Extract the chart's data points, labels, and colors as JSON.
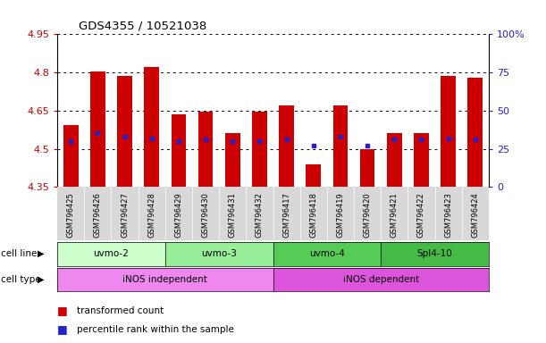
{
  "title": "GDS4355 / 10521038",
  "samples": [
    "GSM796425",
    "GSM796426",
    "GSM796427",
    "GSM796428",
    "GSM796429",
    "GSM796430",
    "GSM796431",
    "GSM796432",
    "GSM796417",
    "GSM796418",
    "GSM796419",
    "GSM796420",
    "GSM796421",
    "GSM796422",
    "GSM796423",
    "GSM796424"
  ],
  "bar_values": [
    4.595,
    4.805,
    4.785,
    4.82,
    4.635,
    4.645,
    4.56,
    4.645,
    4.67,
    4.44,
    4.67,
    4.5,
    4.56,
    4.56,
    4.785,
    4.78
  ],
  "blue_dot_pct": [
    30,
    35,
    33,
    32,
    30,
    31,
    30,
    30,
    31,
    27,
    33,
    27,
    31,
    31,
    32,
    31
  ],
  "ymin": 4.35,
  "ymax": 4.95,
  "yticks": [
    4.35,
    4.5,
    4.65,
    4.8,
    4.95
  ],
  "yticklabels": [
    "4.35",
    "4.5",
    "4.65",
    "4.8",
    "4.95"
  ],
  "right_ytick_pct": [
    0,
    25,
    50,
    75,
    100
  ],
  "right_yticklabels": [
    "0",
    "25",
    "50",
    "75",
    "100%"
  ],
  "bar_color": "#cc0000",
  "blue_color": "#2222cc",
  "left_tick_color": "#cc0000",
  "right_tick_color": "#2222cc",
  "cell_line_groups": [
    {
      "label": "uvmo-2",
      "start": 0,
      "end": 3,
      "color": "#ccffcc"
    },
    {
      "label": "uvmo-3",
      "start": 4,
      "end": 7,
      "color": "#99ee99"
    },
    {
      "label": "uvmo-4",
      "start": 8,
      "end": 11,
      "color": "#55cc55"
    },
    {
      "label": "Spl4-10",
      "start": 12,
      "end": 15,
      "color": "#44bb44"
    }
  ],
  "cell_type_groups": [
    {
      "label": "iNOS independent",
      "start": 0,
      "end": 7,
      "color": "#ee88ee"
    },
    {
      "label": "iNOS dependent",
      "start": 8,
      "end": 15,
      "color": "#dd55dd"
    }
  ],
  "legend_items": [
    {
      "label": "transformed count",
      "color": "#cc0000"
    },
    {
      "label": "percentile rank within the sample",
      "color": "#2222cc"
    }
  ],
  "cell_line_label": "cell line",
  "cell_type_label": "cell type",
  "bar_width": 0.55
}
